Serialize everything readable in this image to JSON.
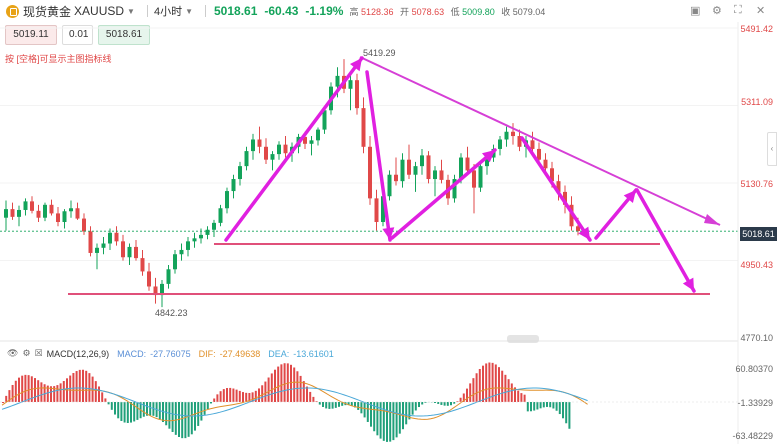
{
  "header": {
    "instrument_name": "现货黄金",
    "symbol": "XAUUSD",
    "timeframe": "4小时",
    "last_price": "5018.61",
    "change": "-60.43",
    "change_pct": "-1.19%",
    "high_label": "高",
    "high_value": "5128.36",
    "open_label": "开",
    "open_value": "5078.63",
    "low_label": "低",
    "low_value": "5009.80",
    "close_label": "收",
    "close_value": "5079.04"
  },
  "trade": {
    "sell_price": "5019.11",
    "quantity": "0.01",
    "buy_price": "5018.61"
  },
  "hint_text": "按 [空格]可显示主图指标线",
  "price_axis": {
    "labels": [
      "5491.42",
      "5311.09",
      "5130.76",
      "4950.43",
      "4770.10"
    ],
    "current": "5018.61"
  },
  "annotations": {
    "peak": "5419.29",
    "trough": "4842.23"
  },
  "macd": {
    "name": "MACD(12,26,9)",
    "macd_label": "MACD:",
    "macd_value": "-27.76075",
    "dif_label": "DIF:",
    "dif_value": "-27.49638",
    "dea_label": "DEA:",
    "dea_value": "-13.61601",
    "axis": [
      "60.80370",
      "-1.33929",
      "-63.48229"
    ]
  },
  "colors": {
    "up": "#13a35a",
    "down": "#e04848",
    "arrow": "#e020e0",
    "level": "#e0507a",
    "triangle": "#d63fd6"
  },
  "candles": [
    [
      5050,
      5090,
      5020,
      5070
    ],
    [
      5070,
      5085,
      5045,
      5052
    ],
    [
      5052,
      5078,
      5030,
      5068
    ],
    [
      5068,
      5095,
      5055,
      5088
    ],
    [
      5088,
      5100,
      5060,
      5066
    ],
    [
      5066,
      5080,
      5040,
      5050
    ],
    [
      5050,
      5085,
      5042,
      5080
    ],
    [
      5080,
      5092,
      5055,
      5060
    ],
    [
      5060,
      5075,
      5030,
      5040
    ],
    [
      5040,
      5070,
      5025,
      5065
    ],
    [
      5065,
      5090,
      5050,
      5072
    ],
    [
      5072,
      5085,
      5045,
      5048
    ],
    [
      5048,
      5060,
      5010,
      5018
    ],
    [
      5018,
      5030,
      4960,
      4968
    ],
    [
      4968,
      4990,
      4930,
      4980
    ],
    [
      4980,
      5005,
      4965,
      4990
    ],
    [
      4990,
      5025,
      4975,
      5015
    ],
    [
      5015,
      5030,
      4985,
      4995
    ],
    [
      4995,
      5010,
      4950,
      4958
    ],
    [
      4958,
      4990,
      4940,
      4982
    ],
    [
      4982,
      4998,
      4950,
      4956
    ],
    [
      4956,
      4975,
      4915,
      4925
    ],
    [
      4925,
      4945,
      4880,
      4890
    ],
    [
      4890,
      4910,
      4850,
      4870
    ],
    [
      4870,
      4905,
      4842,
      4896
    ],
    [
      4896,
      4940,
      4885,
      4930
    ],
    [
      4930,
      4975,
      4920,
      4965
    ],
    [
      4965,
      4990,
      4950,
      4975
    ],
    [
      4975,
      5005,
      4960,
      4995
    ],
    [
      4995,
      5015,
      4980,
      5002
    ],
    [
      5002,
      5025,
      4990,
      5010
    ],
    [
      5010,
      5030,
      5000,
      5022
    ],
    [
      5022,
      5045,
      5005,
      5038
    ],
    [
      5038,
      5080,
      5030,
      5072
    ],
    [
      5072,
      5120,
      5060,
      5112
    ],
    [
      5112,
      5150,
      5095,
      5140
    ],
    [
      5140,
      5180,
      5125,
      5170
    ],
    [
      5170,
      5215,
      5160,
      5205
    ],
    [
      5205,
      5245,
      5185,
      5232
    ],
    [
      5232,
      5262,
      5200,
      5215
    ],
    [
      5215,
      5235,
      5175,
      5185
    ],
    [
      5185,
      5205,
      5160,
      5198
    ],
    [
      5198,
      5228,
      5185,
      5220
    ],
    [
      5220,
      5240,
      5190,
      5200
    ],
    [
      5200,
      5225,
      5180,
      5215
    ],
    [
      5215,
      5245,
      5200,
      5238
    ],
    [
      5238,
      5250,
      5210,
      5222
    ],
    [
      5222,
      5240,
      5195,
      5230
    ],
    [
      5230,
      5260,
      5218,
      5255
    ],
    [
      5255,
      5310,
      5245,
      5300
    ],
    [
      5300,
      5365,
      5290,
      5355
    ],
    [
      5355,
      5400,
      5330,
      5380
    ],
    [
      5380,
      5419,
      5340,
      5350
    ],
    [
      5350,
      5390,
      5300,
      5370
    ],
    [
      5370,
      5385,
      5290,
      5305
    ],
    [
      5305,
      5330,
      5200,
      5215
    ],
    [
      5215,
      5240,
      5080,
      5095
    ],
    [
      5095,
      5115,
      5020,
      5040
    ],
    [
      5040,
      5110,
      5030,
      5100
    ],
    [
      5100,
      5160,
      5090,
      5150
    ],
    [
      5150,
      5190,
      5125,
      5135
    ],
    [
      5135,
      5200,
      5120,
      5185
    ],
    [
      5185,
      5220,
      5140,
      5150
    ],
    [
      5150,
      5180,
      5110,
      5170
    ],
    [
      5170,
      5210,
      5150,
      5195
    ],
    [
      5195,
      5205,
      5130,
      5140
    ],
    [
      5140,
      5170,
      5100,
      5160
    ],
    [
      5160,
      5185,
      5130,
      5138
    ],
    [
      5138,
      5150,
      5080,
      5095
    ],
    [
      5095,
      5150,
      5085,
      5140
    ],
    [
      5140,
      5200,
      5130,
      5190
    ],
    [
      5190,
      5215,
      5150,
      5160
    ],
    [
      5160,
      5175,
      5060,
      5120
    ],
    [
      5120,
      5180,
      5110,
      5170
    ],
    [
      5170,
      5200,
      5150,
      5190
    ],
    [
      5190,
      5220,
      5180,
      5210
    ],
    [
      5210,
      5240,
      5195,
      5232
    ],
    [
      5232,
      5262,
      5215,
      5250
    ],
    [
      5250,
      5270,
      5220,
      5240
    ],
    [
      5240,
      5255,
      5205,
      5215
    ],
    [
      5215,
      5240,
      5190,
      5230
    ],
    [
      5230,
      5250,
      5200,
      5210
    ],
    [
      5210,
      5225,
      5175,
      5185
    ],
    [
      5185,
      5200,
      5150,
      5165
    ],
    [
      5165,
      5180,
      5120,
      5135
    ],
    [
      5135,
      5150,
      5090,
      5110
    ],
    [
      5110,
      5125,
      5060,
      5080
    ],
    [
      5080,
      5100,
      5020,
      5030
    ],
    [
      5030,
      5050,
      5009,
      5019
    ]
  ]
}
